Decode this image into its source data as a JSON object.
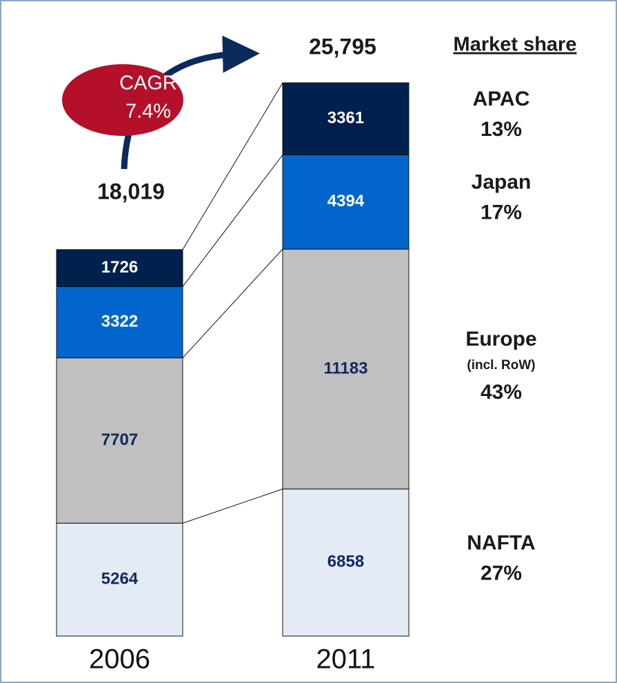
{
  "chart_data": {
    "type": "stacked_bar",
    "categories": [
      "2006",
      "2011"
    ],
    "series": [
      {
        "name": "NAFTA",
        "color": "#e3ebf5",
        "label_color": "#12295a",
        "values": [
          5264,
          6858
        ],
        "share": 27,
        "share_label": "27%"
      },
      {
        "name": "Europe",
        "note": "(incl. RoW)",
        "color": "#c0c0c0",
        "label_color": "#12295a",
        "values": [
          7707,
          11183
        ],
        "share": 43,
        "share_label": "43%"
      },
      {
        "name": "Japan",
        "color": "#0066cc",
        "label_color": "#ffffff",
        "values": [
          3322,
          4394
        ],
        "share": 17,
        "share_label": "17%"
      },
      {
        "name": "APAC",
        "color": "#00204e",
        "label_color": "#ffffff",
        "values": [
          1726,
          3361
        ],
        "share": 13,
        "share_label": "13%"
      }
    ],
    "totals": {
      "values": [
        18019,
        25795
      ],
      "value_labels": [
        "18,019",
        "25,795"
      ]
    },
    "share_title": "Market share",
    "cagr": {
      "label": "CAGR",
      "value": 7.4,
      "value_label": "7.4%"
    }
  }
}
